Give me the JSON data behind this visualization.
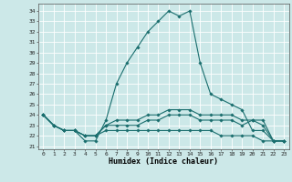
{
  "title": "",
  "xlabel": "Humidex (Indice chaleur)",
  "background_color": "#cce8e8",
  "grid_color": "#ffffff",
  "line_color": "#1a6e6e",
  "xlim": [
    -0.5,
    23.5
  ],
  "ylim": [
    20.7,
    34.7
  ],
  "yticks": [
    21,
    22,
    23,
    24,
    25,
    26,
    27,
    28,
    29,
    30,
    31,
    32,
    33,
    34
  ],
  "xticks": [
    0,
    1,
    2,
    3,
    4,
    5,
    6,
    7,
    8,
    9,
    10,
    11,
    12,
    13,
    14,
    15,
    16,
    17,
    18,
    19,
    20,
    21,
    22,
    23
  ],
  "series": [
    [
      24.0,
      23.0,
      22.5,
      22.5,
      21.5,
      21.5,
      23.5,
      27.0,
      29.0,
      30.5,
      32.0,
      33.0,
      34.0,
      33.5,
      34.0,
      29.0,
      26.0,
      25.5,
      25.0,
      24.5,
      22.5,
      22.5,
      21.5,
      21.5
    ],
    [
      24.0,
      23.0,
      22.5,
      22.5,
      22.0,
      22.0,
      23.0,
      23.5,
      23.5,
      23.5,
      24.0,
      24.0,
      24.5,
      24.5,
      24.5,
      24.0,
      24.0,
      24.0,
      24.0,
      23.5,
      23.5,
      23.5,
      21.5,
      21.5
    ],
    [
      24.0,
      23.0,
      22.5,
      22.5,
      22.0,
      22.0,
      23.0,
      23.0,
      23.0,
      23.0,
      23.5,
      23.5,
      24.0,
      24.0,
      24.0,
      23.5,
      23.5,
      23.5,
      23.5,
      23.0,
      23.5,
      23.0,
      21.5,
      21.5
    ],
    [
      24.0,
      23.0,
      22.5,
      22.5,
      22.0,
      22.0,
      22.5,
      22.5,
      22.5,
      22.5,
      22.5,
      22.5,
      22.5,
      22.5,
      22.5,
      22.5,
      22.5,
      22.0,
      22.0,
      22.0,
      22.0,
      21.5,
      21.5,
      21.5
    ]
  ]
}
